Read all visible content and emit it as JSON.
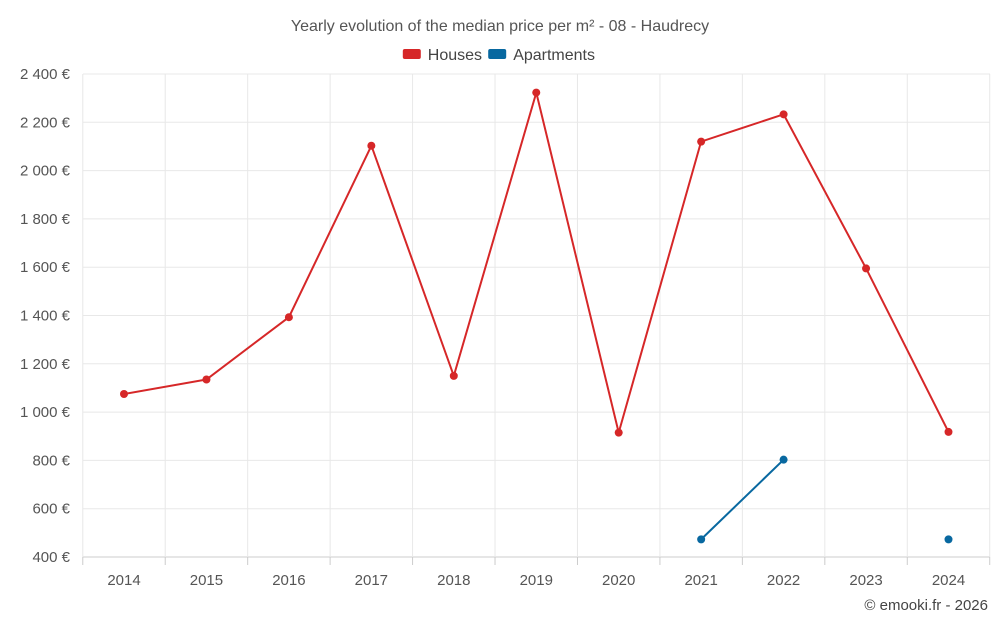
{
  "colors": {
    "houses": "#d62728",
    "apartments": "#0868a0",
    "grid": "#e8e8e8",
    "text": "#555555"
  },
  "chart_data": {
    "type": "line",
    "title": "Yearly evolution of the median price per m² - 08 - Haudrecy",
    "xlabel": "",
    "ylabel": "",
    "categories": [
      "2014",
      "2015",
      "2016",
      "2017",
      "2018",
      "2019",
      "2020",
      "2021",
      "2022",
      "2023",
      "2024"
    ],
    "ylim": [
      400,
      2400
    ],
    "y_ticks": [
      400,
      600,
      800,
      1000,
      1200,
      1400,
      1600,
      1800,
      2000,
      2200,
      2400
    ],
    "y_tick_labels": [
      "400 €",
      "600 €",
      "800 €",
      "1 000 €",
      "1 200 €",
      "1 400 €",
      "1 600 €",
      "1 800 €",
      "2 000 €",
      "2 200 €",
      "2 400 €"
    ],
    "grid": true,
    "legend_position": "top-center",
    "series": [
      {
        "name": "Houses",
        "color": "#d62728",
        "values": [
          1075,
          1135,
          1393,
          2103,
          1150,
          2323,
          915,
          2120,
          2233,
          1595,
          918
        ]
      },
      {
        "name": "Apartments",
        "color": "#0868a0",
        "values": [
          null,
          null,
          null,
          null,
          null,
          null,
          null,
          473,
          803,
          null,
          473
        ]
      }
    ],
    "credit": "© emooki.fr - 2026"
  }
}
